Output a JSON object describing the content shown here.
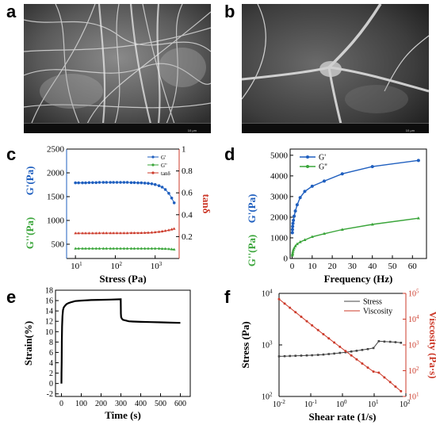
{
  "panels": {
    "a": {
      "letter": "a"
    },
    "b": {
      "letter": "b"
    },
    "c": {
      "letter": "c"
    },
    "d": {
      "letter": "d"
    },
    "e": {
      "letter": "e"
    },
    "f": {
      "letter": "f"
    }
  },
  "sem": {
    "a": {
      "scale": "10 μm"
    },
    "b": {
      "scale": "10 μm"
    }
  },
  "colors": {
    "blue": "#1f5fbf",
    "green": "#3aa53a",
    "red": "#cc3a2a",
    "black": "#000000"
  },
  "chart_data": [
    {
      "id": "c",
      "type": "scatter",
      "xlabel": "Stress (Pa)",
      "xscale": "log",
      "xlim": [
        6,
        4000
      ],
      "xticks": [
        "10^1",
        "10^2",
        "10^3"
      ],
      "ylabel_left_top": "G'(Pa)",
      "ylabel_left_bottom": "G''(Pa)",
      "ylim_left": [
        200,
        2500
      ],
      "yticks_left": [
        500,
        1000,
        1500,
        2000,
        2500
      ],
      "ylabel_right": "tanδ",
      "ylim_right": [
        0,
        1.0
      ],
      "yticks_right": [
        0.2,
        0.4,
        0.6,
        0.8,
        1.0
      ],
      "legend": [
        "G'",
        "G''",
        "tanδ"
      ],
      "legend_position": "top-right",
      "series": [
        {
          "name": "G'",
          "axis": "left",
          "color": "#1f5fbf",
          "x": [
            10,
            12,
            15,
            18,
            22,
            27,
            33,
            40,
            50,
            60,
            75,
            90,
            110,
            135,
            165,
            200,
            250,
            300,
            370,
            450,
            550,
            670,
            820,
            1000,
            1250,
            1500,
            1800,
            2200,
            2600,
            3000
          ],
          "y": [
            1790,
            1790,
            1790,
            1790,
            1795,
            1795,
            1795,
            1800,
            1800,
            1800,
            1800,
            1800,
            1800,
            1800,
            1800,
            1800,
            1795,
            1795,
            1790,
            1790,
            1785,
            1780,
            1770,
            1755,
            1730,
            1700,
            1650,
            1570,
            1470,
            1370
          ]
        },
        {
          "name": "G''",
          "axis": "left",
          "color": "#3aa53a",
          "x": [
            10,
            12,
            15,
            18,
            22,
            27,
            33,
            40,
            50,
            60,
            75,
            90,
            110,
            135,
            165,
            200,
            250,
            300,
            370,
            450,
            550,
            670,
            820,
            1000,
            1250,
            1500,
            1800,
            2200,
            2600,
            3000
          ],
          "y": [
            410,
            410,
            410,
            410,
            410,
            410,
            410,
            410,
            410,
            410,
            410,
            410,
            410,
            410,
            410,
            410,
            410,
            410,
            410,
            410,
            410,
            410,
            410,
            410,
            410,
            405,
            405,
            400,
            395,
            390
          ]
        },
        {
          "name": "tanδ",
          "axis": "right",
          "color": "#cc3a2a",
          "x": [
            10,
            12,
            15,
            18,
            22,
            27,
            33,
            40,
            50,
            60,
            75,
            90,
            110,
            135,
            165,
            200,
            250,
            300,
            370,
            450,
            550,
            670,
            820,
            1000,
            1250,
            1500,
            1800,
            2200,
            2600,
            3000
          ],
          "y": [
            0.231,
            0.231,
            0.231,
            0.231,
            0.231,
            0.231,
            0.231,
            0.232,
            0.232,
            0.232,
            0.232,
            0.232,
            0.232,
            0.232,
            0.232,
            0.232,
            0.233,
            0.233,
            0.233,
            0.234,
            0.235,
            0.236,
            0.238,
            0.24,
            0.244,
            0.248,
            0.253,
            0.259,
            0.266,
            0.272
          ]
        }
      ]
    },
    {
      "id": "d",
      "type": "line",
      "xlabel": "Frequency (Hz)",
      "xlim": [
        -1,
        67
      ],
      "xticks": [
        0,
        10,
        20,
        30,
        40,
        50,
        60
      ],
      "ylabel_top": "G'(Pa)",
      "ylabel_bottom": "G''(Pa)",
      "ylim": [
        0,
        5300
      ],
      "yticks": [
        0,
        1000,
        2000,
        3000,
        4000,
        5000
      ],
      "legend": [
        "G'",
        "G''"
      ],
      "legend_position": "top-left",
      "series": [
        {
          "name": "G'",
          "color": "#1f5fbf",
          "x": [
            0.1,
            0.16,
            0.25,
            0.4,
            0.63,
            1.0,
            1.6,
            2.5,
            4.0,
            6.3,
            10,
            16,
            25,
            40,
            63
          ],
          "y": [
            1250,
            1400,
            1550,
            1700,
            1850,
            2050,
            2300,
            2600,
            2950,
            3250,
            3500,
            3750,
            4100,
            4450,
            4750
          ]
        },
        {
          "name": "G''",
          "color": "#3aa53a",
          "x": [
            0.1,
            0.16,
            0.25,
            0.4,
            0.63,
            1.0,
            1.6,
            2.5,
            4.0,
            6.3,
            10,
            16,
            25,
            40,
            63
          ],
          "y": [
            150,
            200,
            250,
            330,
            420,
            500,
            600,
            700,
            800,
            900,
            1050,
            1200,
            1400,
            1650,
            1950
          ]
        }
      ]
    },
    {
      "id": "e",
      "type": "line",
      "xlabel": "Time (s)",
      "xlim": [
        -30,
        650
      ],
      "xticks": [
        0,
        100,
        200,
        300,
        400,
        500,
        600
      ],
      "ylabel": "Strain(%)",
      "ylim": [
        -2.5,
        18
      ],
      "yticks": [
        -2,
        0,
        2,
        4,
        6,
        8,
        10,
        12,
        14,
        16,
        18
      ],
      "series": [
        {
          "name": "",
          "color": "#000000",
          "x": [
            0,
            0.5,
            1,
            2,
            3,
            5,
            8,
            12,
            18,
            25,
            35,
            50,
            70,
            100,
            150,
            200,
            250,
            299,
            300,
            301,
            305,
            310,
            320,
            340,
            360,
            400,
            450,
            500,
            550,
            600
          ],
          "y": [
            0,
            2,
            4,
            8,
            11,
            13,
            14.2,
            14.7,
            15.0,
            15.3,
            15.5,
            15.7,
            15.9,
            16.0,
            16.1,
            16.15,
            16.2,
            16.25,
            13.5,
            12.8,
            12.5,
            12.3,
            12.2,
            12.0,
            11.95,
            11.9,
            11.85,
            11.8,
            11.75,
            11.7
          ]
        }
      ]
    },
    {
      "id": "f",
      "type": "line",
      "xlabel": "Shear rate (1/s)",
      "xscale": "log",
      "xlim": [
        0.01,
        100
      ],
      "xticks": [
        "10^-2",
        "10^-1",
        "10^0",
        "10^1",
        "10^2"
      ],
      "ylabel_left": "Stress (Pa)",
      "yscale_left": "log",
      "ylim_left": [
        100,
        10000
      ],
      "yticks_left": [
        "10^2",
        "10^3",
        "10^4"
      ],
      "ylabel_right": "Viscosity (Pa·s)",
      "yscale_right": "log",
      "ylim_right": [
        10,
        100000
      ],
      "yticks_right": [
        "10^1",
        "10^2",
        "10^3",
        "10^4",
        "10^5"
      ],
      "legend": [
        "Stress",
        "Viscosity"
      ],
      "legend_position": "top-right",
      "series": [
        {
          "name": "Stress",
          "axis": "left",
          "color": "#444444",
          "x": [
            0.01,
            0.015,
            0.022,
            0.033,
            0.05,
            0.075,
            0.11,
            0.17,
            0.25,
            0.37,
            0.55,
            0.83,
            1.25,
            1.9,
            2.8,
            4.2,
            6.3,
            9.5,
            14,
            21,
            32,
            47,
            70
          ],
          "y": [
            600,
            605,
            610,
            615,
            620,
            625,
            630,
            640,
            650,
            665,
            680,
            700,
            720,
            745,
            770,
            800,
            830,
            870,
            1180,
            1160,
            1150,
            1130,
            1100
          ]
        },
        {
          "name": "Viscosity",
          "axis": "right",
          "color": "#cc3a2a",
          "x": [
            0.01,
            0.015,
            0.022,
            0.033,
            0.05,
            0.075,
            0.11,
            0.17,
            0.25,
            0.37,
            0.55,
            0.83,
            1.25,
            1.9,
            2.8,
            4.2,
            6.3,
            9.5,
            14,
            21,
            32,
            47,
            70
          ],
          "y": [
            60000,
            40300,
            27700,
            18600,
            12400,
            8330,
            5730,
            3760,
            2600,
            1800,
            1240,
            843,
            576,
            392,
            275,
            190,
            132,
            92,
            84,
            55,
            36,
            24,
            16
          ]
        }
      ]
    }
  ]
}
